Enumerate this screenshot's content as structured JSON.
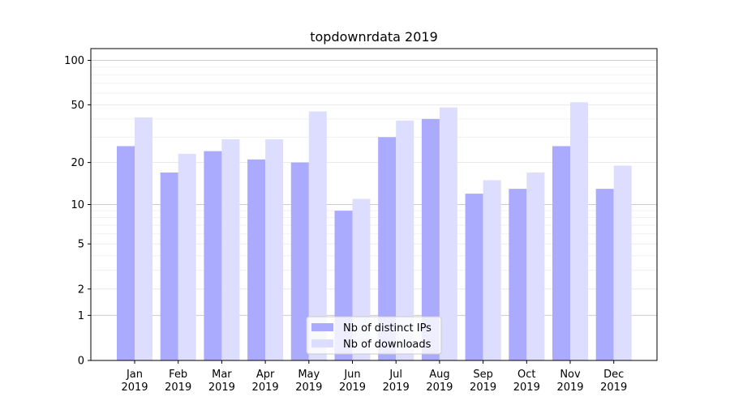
{
  "chart_data": {
    "type": "bar",
    "title": "topdownrdata 2019",
    "xlabel": "",
    "ylabel": "",
    "yscale": "log1p",
    "ylim": [
      0,
      120
    ],
    "yticks": [
      {
        "value": 0,
        "label": "0"
      },
      {
        "value": 1,
        "label": "1"
      },
      {
        "value": 2,
        "label": "2"
      },
      {
        "value": 5,
        "label": "5"
      },
      {
        "value": 10,
        "label": "10"
      },
      {
        "value": 20,
        "label": "20"
      },
      {
        "value": 50,
        "label": "50"
      },
      {
        "value": 100,
        "label": "100"
      }
    ],
    "categories": [
      [
        "Jan",
        "2019"
      ],
      [
        "Feb",
        "2019"
      ],
      [
        "Mar",
        "2019"
      ],
      [
        "Apr",
        "2019"
      ],
      [
        "May",
        "2019"
      ],
      [
        "Jun",
        "2019"
      ],
      [
        "Jul",
        "2019"
      ],
      [
        "Aug",
        "2019"
      ],
      [
        "Sep",
        "2019"
      ],
      [
        "Oct",
        "2019"
      ],
      [
        "Nov",
        "2019"
      ],
      [
        "Dec",
        "2019"
      ]
    ],
    "series": [
      {
        "name": "Nb of distinct IPs",
        "color": "#aaaaff",
        "values": [
          26,
          17,
          24,
          21,
          20,
          9,
          30,
          40,
          12,
          13,
          26,
          13
        ]
      },
      {
        "name": "Nb of downloads",
        "color": "#ddddff",
        "values": [
          41,
          23,
          29,
          29,
          45,
          11,
          39,
          48,
          15,
          17,
          52,
          19
        ]
      }
    ],
    "legend": "lower-center",
    "grid": true
  }
}
